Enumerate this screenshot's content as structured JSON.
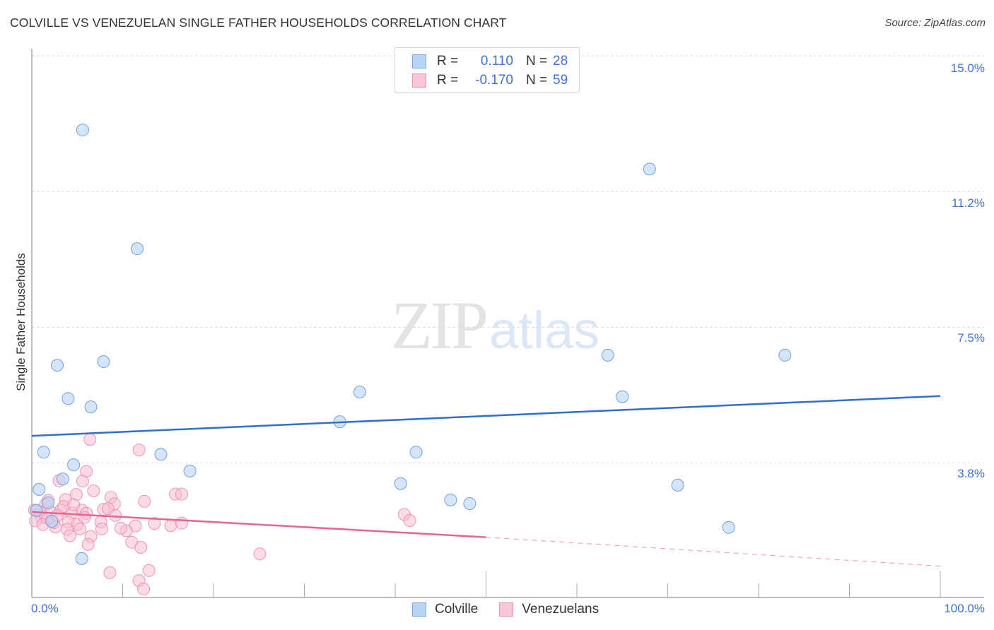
{
  "header": {
    "title": "COLVILLE VS VENEZUELAN SINGLE FATHER HOUSEHOLDS CORRELATION CHART",
    "source": "Source: ZipAtlas.com"
  },
  "watermark": {
    "zip": "ZIP",
    "atlas": "atlas"
  },
  "legend": {
    "rows": [
      {
        "series": "Colville",
        "r_label": "R =",
        "r_value": "0.110",
        "n_label": "N =",
        "n_value": "28",
        "fill": "#b8d3f5",
        "stroke": "#7aa6e6"
      },
      {
        "series": "Venezuelans",
        "r_label": "R =",
        "r_value": "-0.170",
        "n_label": "N =",
        "n_value": "59",
        "fill": "#f8c6d6",
        "stroke": "#ec95b2"
      }
    ]
  },
  "bottom_legend": [
    {
      "label": "Colville",
      "fill": "#b8d3f5",
      "stroke": "#7aa6e6"
    },
    {
      "label": "Venezuelans",
      "fill": "#f8c6d6",
      "stroke": "#ec95b2"
    }
  ],
  "axes": {
    "y_label": "Single Father Households",
    "y_ticks": [
      {
        "label": "15.0%",
        "value": 15.0
      },
      {
        "label": "11.2%",
        "value": 11.25
      },
      {
        "label": "7.5%",
        "value": 7.5
      },
      {
        "label": "3.8%",
        "value": 3.75
      }
    ],
    "x_ticks": [
      {
        "label": "0.0%",
        "value": 0
      },
      {
        "label": "100.0%",
        "value": 100
      }
    ]
  },
  "colors": {
    "colville_line": "#2f6fcd",
    "venezuelan_line": "#e8648f",
    "tick_label": "#3f74cc",
    "grid": "#dddddd",
    "axis": "#aaaaaa"
  },
  "chart_data": {
    "type": "scatter",
    "title": "COLVILLE VS VENEZUELAN SINGLE FATHER HOUSEHOLDS CORRELATION CHART",
    "xlabel": "",
    "ylabel": "Single Father Households",
    "xlim": [
      0,
      100
    ],
    "ylim": [
      0,
      15.5
    ],
    "x_unit": "%",
    "y_unit": "%",
    "grid": true,
    "legend_position": "top-center and bottom",
    "series": [
      {
        "name": "Colville",
        "R": 0.11,
        "N": 28,
        "color": "#7aa6e6",
        "trend": {
          "x": [
            0,
            100
          ],
          "y": [
            4.5,
            5.6
          ]
        },
        "points": [
          [
            5.6,
            12.95
          ],
          [
            11.6,
            9.67
          ],
          [
            68.0,
            11.87
          ],
          [
            2.8,
            6.45
          ],
          [
            7.9,
            6.55
          ],
          [
            4.0,
            5.53
          ],
          [
            6.5,
            5.3
          ],
          [
            36.1,
            5.71
          ],
          [
            63.4,
            6.73
          ],
          [
            82.9,
            6.73
          ],
          [
            65.0,
            5.58
          ],
          [
            33.9,
            4.89
          ],
          [
            1.3,
            4.05
          ],
          [
            14.2,
            3.99
          ],
          [
            42.3,
            4.05
          ],
          [
            4.6,
            3.7
          ],
          [
            17.4,
            3.53
          ],
          [
            3.4,
            3.31
          ],
          [
            0.8,
            3.02
          ],
          [
            40.6,
            3.18
          ],
          [
            71.1,
            3.14
          ],
          [
            46.1,
            2.73
          ],
          [
            48.2,
            2.63
          ],
          [
            76.7,
            1.97
          ],
          [
            5.5,
            1.11
          ],
          [
            1.8,
            2.65
          ],
          [
            0.5,
            2.44
          ],
          [
            2.2,
            2.14
          ]
        ]
      },
      {
        "name": "Venezuelans",
        "R": -0.17,
        "N": 59,
        "color": "#ec95b2",
        "trend": {
          "x": [
            0,
            50
          ],
          "y": [
            2.4,
            1.7
          ],
          "dashed_extension": {
            "x": [
              50,
              100
            ],
            "y": [
              1.7,
              0.9
            ]
          }
        },
        "points": [
          [
            6.4,
            4.4
          ],
          [
            11.8,
            4.11
          ],
          [
            6.0,
            3.52
          ],
          [
            3.0,
            3.26
          ],
          [
            5.6,
            3.25
          ],
          [
            6.8,
            2.98
          ],
          [
            8.7,
            2.8
          ],
          [
            4.9,
            2.88
          ],
          [
            3.7,
            2.74
          ],
          [
            1.8,
            2.72
          ],
          [
            12.4,
            2.69
          ],
          [
            9.1,
            2.62
          ],
          [
            15.8,
            2.89
          ],
          [
            16.5,
            2.89
          ],
          [
            1.5,
            2.6
          ],
          [
            3.2,
            2.45
          ],
          [
            5.5,
            2.45
          ],
          [
            7.9,
            2.47
          ],
          [
            8.4,
            2.49
          ],
          [
            0.3,
            2.45
          ],
          [
            0.9,
            2.4
          ],
          [
            2.1,
            2.39
          ],
          [
            4.4,
            2.37
          ],
          [
            6.0,
            2.36
          ],
          [
            9.2,
            2.3
          ],
          [
            1.0,
            2.25
          ],
          [
            1.7,
            2.22
          ],
          [
            0.4,
            2.15
          ],
          [
            4.0,
            2.12
          ],
          [
            5.0,
            2.05
          ],
          [
            7.6,
            2.12
          ],
          [
            11.4,
            2.01
          ],
          [
            13.5,
            2.08
          ],
          [
            15.3,
            2.02
          ],
          [
            16.5,
            2.09
          ],
          [
            41.0,
            2.33
          ],
          [
            41.6,
            2.16
          ],
          [
            2.4,
            2.1
          ],
          [
            3.9,
            1.92
          ],
          [
            5.3,
            1.93
          ],
          [
            7.7,
            1.93
          ],
          [
            10.4,
            1.88
          ],
          [
            4.2,
            1.74
          ],
          [
            6.5,
            1.72
          ],
          [
            11.0,
            1.56
          ],
          [
            12.0,
            1.42
          ],
          [
            6.2,
            1.5
          ],
          [
            25.1,
            1.24
          ],
          [
            8.6,
            0.72
          ],
          [
            12.9,
            0.78
          ],
          [
            11.8,
            0.5
          ],
          [
            12.3,
            0.27
          ],
          [
            2.8,
            2.3
          ],
          [
            3.5,
            2.55
          ],
          [
            1.2,
            2.05
          ],
          [
            2.6,
            1.98
          ],
          [
            5.8,
            2.25
          ],
          [
            9.8,
            1.95
          ],
          [
            4.6,
            2.6
          ]
        ]
      }
    ]
  }
}
